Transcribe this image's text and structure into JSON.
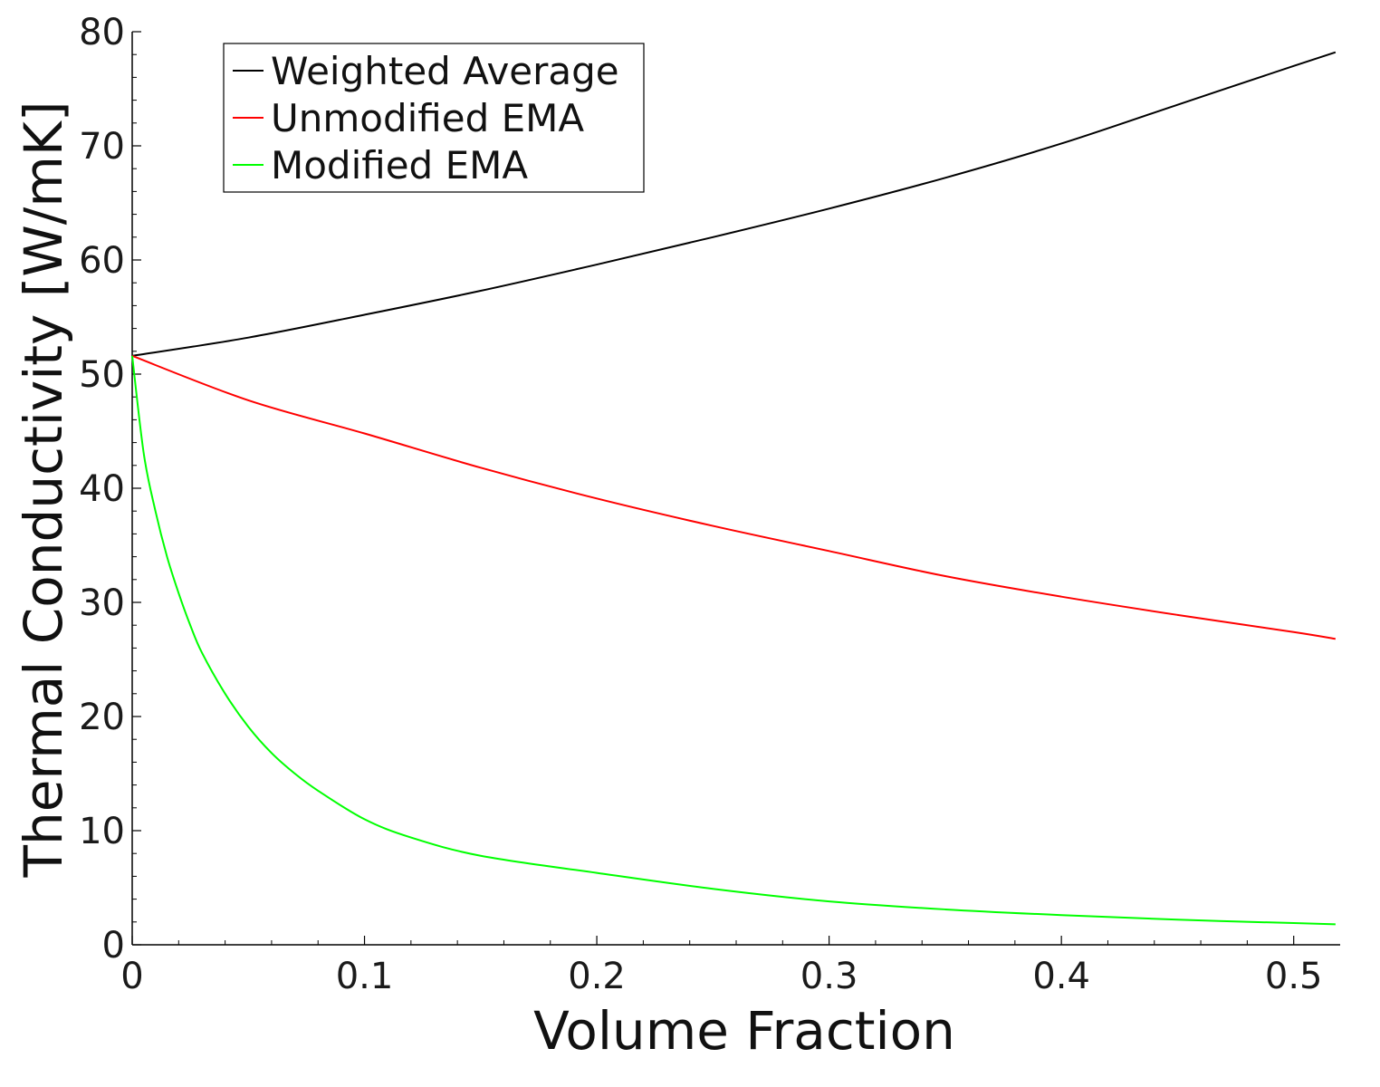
{
  "chart_data": {
    "type": "line",
    "title": "",
    "xlabel": "Volume Fraction",
    "ylabel": "Thermal Conductivity [W/mK]",
    "xlim": [
      0,
      0.52
    ],
    "ylim": [
      0,
      80
    ],
    "x_ticks": [
      0,
      0.1,
      0.2,
      0.3,
      0.4,
      0.5
    ],
    "x_tick_labels": [
      "0",
      "0.1",
      "0.2",
      "0.3",
      "0.4",
      "0.5"
    ],
    "y_ticks": [
      0,
      10,
      20,
      30,
      40,
      50,
      60,
      70,
      80
    ],
    "y_tick_labels": [
      "0",
      "10",
      "20",
      "30",
      "40",
      "50",
      "60",
      "70",
      "80"
    ],
    "grid": false,
    "legend_position": "top-left",
    "series": [
      {
        "name": "Weighted Average",
        "color": "#000000",
        "x": [
          0,
          0.05,
          0.1,
          0.15,
          0.2,
          0.25,
          0.3,
          0.35,
          0.4,
          0.45,
          0.5,
          0.518
        ],
        "y": [
          51.6,
          53.2,
          55.2,
          57.3,
          59.6,
          62.0,
          64.5,
          67.2,
          70.2,
          73.6,
          77.0,
          78.2
        ]
      },
      {
        "name": "Unmodified EMA",
        "color": "#ff0000",
        "x": [
          0,
          0.05,
          0.1,
          0.15,
          0.2,
          0.25,
          0.3,
          0.35,
          0.4,
          0.45,
          0.5,
          0.518
        ],
        "y": [
          51.6,
          47.7,
          44.8,
          41.8,
          39.1,
          36.7,
          34.5,
          32.3,
          30.5,
          28.9,
          27.4,
          26.8
        ]
      },
      {
        "name": "Modified EMA",
        "color": "#00ff00",
        "x": [
          0,
          0.005,
          0.01,
          0.015,
          0.02,
          0.025,
          0.03,
          0.04,
          0.05,
          0.06,
          0.07,
          0.08,
          0.1,
          0.12,
          0.15,
          0.2,
          0.25,
          0.3,
          0.35,
          0.4,
          0.45,
          0.5,
          0.518
        ],
        "y": [
          51.6,
          43.0,
          38.0,
          34.0,
          30.8,
          28.0,
          25.6,
          22.0,
          19.1,
          16.8,
          15.0,
          13.5,
          11.0,
          9.4,
          7.8,
          6.3,
          4.9,
          3.8,
          3.1,
          2.6,
          2.2,
          1.9,
          1.8
        ]
      }
    ]
  }
}
